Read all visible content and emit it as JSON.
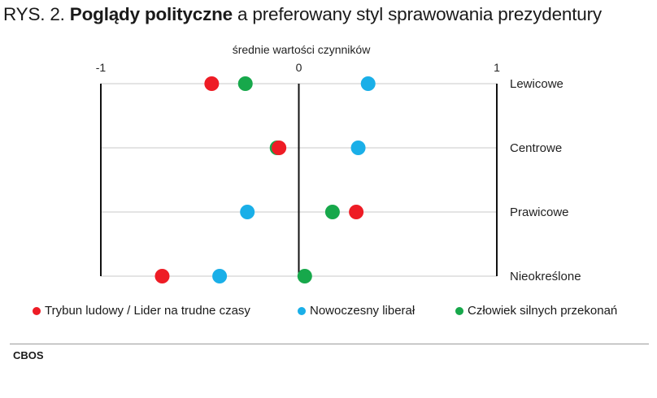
{
  "title": {
    "prefix": "RYS. 2.",
    "bold": "Poglądy polityczne",
    "rest": "a preferowany styl sprawowania prezydentury"
  },
  "source": "CBOS",
  "colors": {
    "red": "#ee1c25",
    "blue": "#1aafe8",
    "green": "#17a84b"
  },
  "chart_data": {
    "type": "scatter",
    "xlabel": "średnie wartości czynników",
    "xlim": [
      -1,
      1
    ],
    "xticks": [
      {
        "value": -1,
        "label": "-1"
      },
      {
        "value": 0,
        "label": "0"
      },
      {
        "value": 1,
        "label": "1"
      }
    ],
    "categories": [
      "Lewicowe",
      "Centrowe",
      "Prawicowe",
      "Nieokreślone"
    ],
    "grid": true,
    "legend_position": "bottom",
    "series": [
      {
        "name": "Trybun ludowy / Lider na trudne czasy",
        "color": "#ee1c25",
        "values": [
          -0.44,
          -0.1,
          0.29,
          -0.69
        ]
      },
      {
        "name": "Nowoczesny liberał",
        "color": "#1aafe8",
        "values": [
          0.35,
          0.3,
          -0.26,
          -0.4
        ]
      },
      {
        "name": "Człowiek silnych przekonań",
        "color": "#17a84b",
        "values": [
          -0.27,
          -0.11,
          0.17,
          0.03
        ]
      }
    ]
  }
}
